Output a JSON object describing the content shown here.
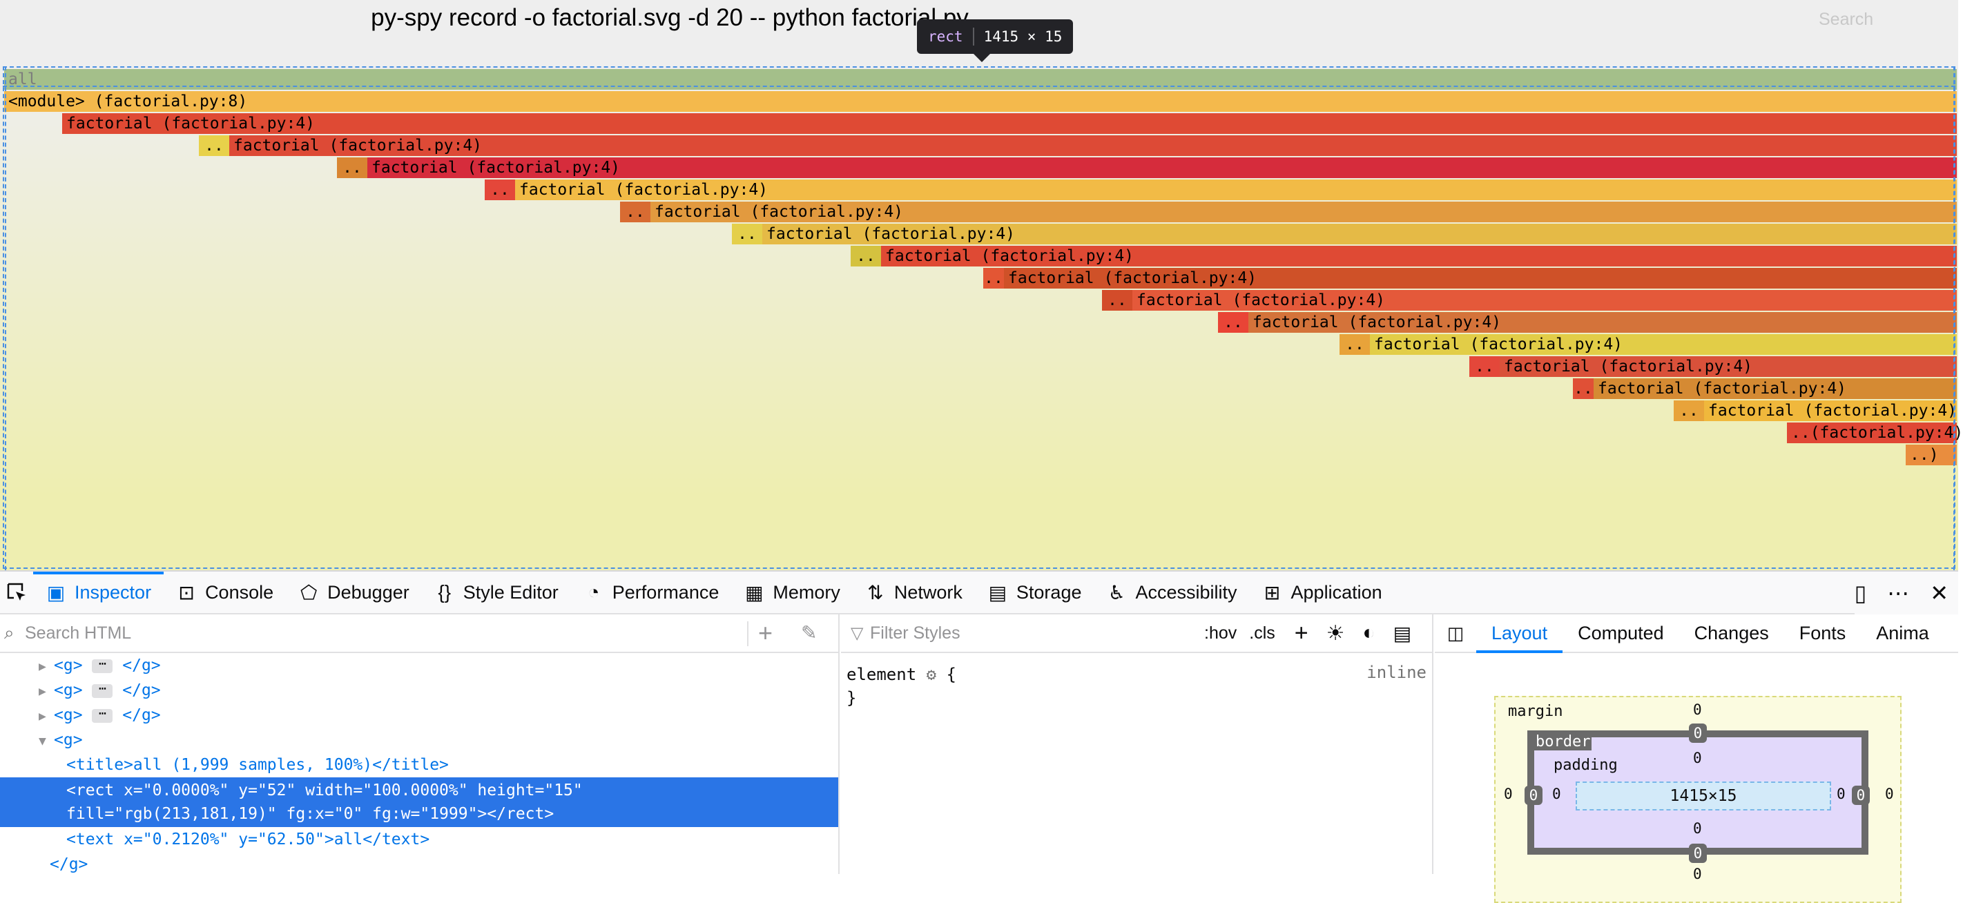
{
  "graph": {
    "title": "py-spy record -o factorial.svg -d 20 -- python factorial.py",
    "search_label": "Search",
    "frames": [
      {
        "label": "all",
        "color": "#a4bf8a",
        "text_color": "#7c7c7c"
      },
      {
        "label": "<module> (factorial.py:8)",
        "color": "#f4b94c"
      },
      {
        "label": "factorial (factorial.py:4)",
        "color": "#df4a34"
      },
      {
        "label": "factorial (factorial.py:4)",
        "color": "#dd4a36"
      },
      {
        "label": "factorial (factorial.py:4)",
        "color": "#d62c3c"
      },
      {
        "label": "factorial (factorial.py:4)",
        "color": "#f2bb46"
      },
      {
        "label": "factorial (factorial.py:4)",
        "color": "#e29a3f"
      },
      {
        "label": "factorial (factorial.py:4)",
        "color": "#e5ba46"
      },
      {
        "label": "factorial (factorial.py:4)",
        "color": "#df4a34"
      },
      {
        "label": "factorial (factorial.py:4)",
        "color": "#cf5128"
      },
      {
        "label": "factorial (factorial.py:4)",
        "color": "#e4593a"
      },
      {
        "label": "factorial (factorial.py:4)",
        "color": "#d4733a"
      },
      {
        "label": "factorial (factorial.py:4)",
        "color": "#e2cd47"
      },
      {
        "label": "factorial (factorial.py:4)",
        "color": "#d9513a"
      },
      {
        "label": "factorial (factorial.py:4)",
        "color": "#d58a33"
      },
      {
        "label": "factorial (factorial.py:4)",
        "color": "#f0b83c"
      },
      {
        "label": "..(factorial.py:4)",
        "color": "#e04735"
      },
      {
        "label": "..)",
        "color": "#e98d3e"
      }
    ],
    "stub_label": ".."
  },
  "tooltip": {
    "tag": "rect",
    "size": "1415 × 15"
  },
  "devtools": {
    "tabs": [
      {
        "label": "Inspector",
        "icon": "inspector-icon",
        "active": true
      },
      {
        "label": "Console",
        "icon": "console-icon"
      },
      {
        "label": "Debugger",
        "icon": "debugger-icon"
      },
      {
        "label": "Style Editor",
        "icon": "style-editor-icon"
      },
      {
        "label": "Performance",
        "icon": "performance-icon"
      },
      {
        "label": "Memory",
        "icon": "memory-icon"
      },
      {
        "label": "Network",
        "icon": "network-icon"
      },
      {
        "label": "Storage",
        "icon": "storage-icon"
      },
      {
        "label": "Accessibility",
        "icon": "accessibility-icon"
      },
      {
        "label": "Application",
        "icon": "application-icon"
      }
    ],
    "markup": {
      "search_placeholder": "Search HTML",
      "nodes": [
        {
          "kind": "collapsed",
          "open": "<g>",
          "close": "</g>"
        },
        {
          "kind": "collapsed",
          "open": "<g>",
          "close": "</g>"
        },
        {
          "kind": "collapsed",
          "open": "<g>",
          "close": "</g>"
        },
        {
          "kind": "expanded",
          "text": "<g>"
        },
        {
          "kind": "title",
          "text": "<title>all (1,999 samples, 100%)</title>"
        },
        {
          "kind": "rect",
          "line1": "<rect x=\"0.0000%\" y=\"52\" width=\"100.0000%\" height=\"15\"",
          "line2": "fill=\"rgb(213,181,19)\" fg:x=\"0\" fg:w=\"1999\"></rect>"
        },
        {
          "kind": "text",
          "text": "<text x=\"0.2120%\" y=\"62.50\">all</text>"
        },
        {
          "kind": "close",
          "text": "</g>"
        }
      ]
    },
    "rules": {
      "filter_placeholder": "Filter Styles",
      "hov_label": ":hov",
      "cls_label": ".cls",
      "selector": "element",
      "open_brace": "{",
      "close_brace": "}",
      "inline_label": "inline"
    },
    "layout_tabs": [
      "Layout",
      "Computed",
      "Changes",
      "Fonts",
      "Anima"
    ],
    "boxmodel": {
      "margin_label": "margin",
      "border_label": "border",
      "padding_label": "padding",
      "content_size": "1415×15",
      "margin_top": "0",
      "margin_right": "0",
      "margin_bottom": "0",
      "margin_left": "0",
      "border_top": "0",
      "border_right": "0",
      "border_bottom": "0",
      "border_left": "0",
      "padding_top": "0",
      "padding_right": "0",
      "padding_bottom": "0",
      "padding_left": "0"
    }
  }
}
